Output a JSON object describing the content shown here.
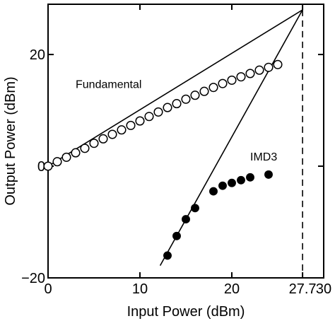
{
  "chart_data": {
    "type": "scatter",
    "xlabel": "Input Power (dBm)",
    "ylabel": "Output Power (dBm)",
    "xlim": [
      0,
      30
    ],
    "ylim": [
      -20,
      29
    ],
    "x_ticks": [
      {
        "value": 0,
        "label": "0"
      },
      {
        "value": 10,
        "label": "10"
      },
      {
        "value": 20,
        "label": "20"
      },
      {
        "value": 27.7,
        "label": "27.7"
      },
      {
        "value": 30,
        "label": "30"
      }
    ],
    "y_ticks": [
      {
        "value": 20,
        "label": "20"
      },
      {
        "value": 0,
        "label": "0"
      },
      {
        "value": -20,
        "label": "−20"
      }
    ],
    "series": [
      {
        "name": "Fundamental",
        "marker": "open-circle",
        "x": [
          0,
          1,
          2,
          3,
          4,
          5,
          6,
          7,
          8,
          9,
          10,
          11,
          12,
          13,
          14,
          15,
          16,
          17,
          18,
          19,
          20,
          21,
          22,
          23,
          24,
          25
        ],
        "y": [
          0,
          0.8,
          1.6,
          2.4,
          3.2,
          4.1,
          4.9,
          5.7,
          6.5,
          7.3,
          8.1,
          8.9,
          9.7,
          10.5,
          11.2,
          12.0,
          12.7,
          13.4,
          14.1,
          14.8,
          15.4,
          16.0,
          16.6,
          17.2,
          17.7,
          18.2
        ]
      },
      {
        "name": "IMD3",
        "marker": "filled-circle",
        "x": [
          13,
          14,
          15,
          16,
          18,
          19,
          20,
          21,
          22,
          24
        ],
        "y": [
          -16,
          -12.5,
          -9.5,
          -7.5,
          -4.5,
          -3.5,
          -3,
          -2.5,
          -2,
          -1.5
        ]
      }
    ],
    "fit_lines": [
      {
        "x": [
          0,
          27.7
        ],
        "y": [
          0,
          28.0
        ]
      },
      {
        "x": [
          12.2,
          27.7
        ],
        "y": [
          -17.8,
          28.0
        ]
      }
    ],
    "annotations": [
      {
        "text": "Fundamental",
        "x": 3,
        "y": 14
      },
      {
        "text": "IMD3",
        "x": 22,
        "y": 1
      }
    ],
    "vline": {
      "x": 27.7,
      "style": "dashed"
    },
    "grid": false,
    "legend": "none"
  }
}
